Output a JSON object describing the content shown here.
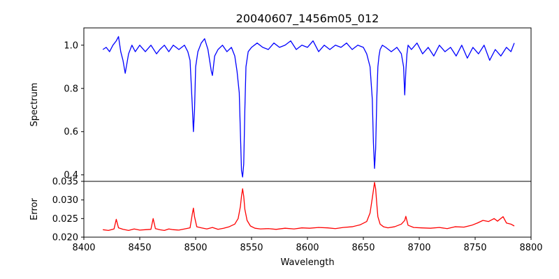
{
  "chart_data": [
    {
      "type": "line",
      "title": "20040607_1456m05_012",
      "ylabel": "Spectrum",
      "xlim": [
        8400,
        8800
      ],
      "ylim": [
        0.37,
        1.08
      ],
      "yticks": [
        0.4,
        0.6,
        0.8,
        1.0
      ],
      "ytick_labels": [
        "0.4",
        "0.6",
        "0.8",
        "1.0"
      ],
      "grid": false,
      "series": [
        {
          "color": "#0000ff",
          "x": [
            8417,
            8420,
            8423,
            8426,
            8429,
            8431,
            8433,
            8435,
            8437,
            8440,
            8443,
            8446,
            8450,
            8455,
            8460,
            8465,
            8468,
            8472,
            8476,
            8480,
            8485,
            8490,
            8493,
            8495,
            8497,
            8498,
            8499,
            8500,
            8502,
            8505,
            8508,
            8511,
            8514,
            8515,
            8517,
            8520,
            8524,
            8528,
            8532,
            8535,
            8537,
            8539,
            8540,
            8541,
            8542,
            8543,
            8544,
            8545,
            8547,
            8550,
            8555,
            8560,
            8565,
            8570,
            8575,
            8580,
            8585,
            8590,
            8595,
            8600,
            8605,
            8610,
            8615,
            8620,
            8625,
            8630,
            8635,
            8640,
            8645,
            8650,
            8653,
            8656,
            8658,
            8659,
            8660,
            8661,
            8662,
            8663,
            8664,
            8665,
            8667,
            8670,
            8675,
            8680,
            8684,
            8686,
            8687,
            8688,
            8689,
            8690,
            8693,
            8698,
            8703,
            8708,
            8713,
            8718,
            8723,
            8728,
            8733,
            8738,
            8743,
            8748,
            8753,
            8758,
            8763,
            8768,
            8773,
            8778,
            8782,
            8785
          ],
          "values": [
            0.98,
            0.99,
            0.97,
            1.0,
            1.02,
            1.04,
            0.97,
            0.93,
            0.87,
            0.96,
            1.0,
            0.97,
            1.0,
            0.97,
            1.0,
            0.96,
            0.98,
            1.0,
            0.97,
            1.0,
            0.98,
            1.0,
            0.97,
            0.93,
            0.72,
            0.6,
            0.7,
            0.9,
            0.97,
            1.01,
            1.03,
            0.98,
            0.88,
            0.86,
            0.95,
            0.98,
            1.0,
            0.97,
            0.99,
            0.95,
            0.88,
            0.78,
            0.6,
            0.42,
            0.39,
            0.45,
            0.7,
            0.9,
            0.97,
            0.99,
            1.01,
            0.99,
            0.98,
            1.01,
            0.99,
            1.0,
            1.02,
            0.98,
            1.0,
            0.99,
            1.02,
            0.97,
            1.0,
            0.98,
            1.0,
            0.99,
            1.01,
            0.98,
            1.0,
            0.99,
            0.96,
            0.9,
            0.75,
            0.55,
            0.43,
            0.52,
            0.75,
            0.9,
            0.95,
            0.98,
            1.0,
            0.99,
            0.97,
            0.99,
            0.96,
            0.9,
            0.77,
            0.88,
            0.96,
            1.0,
            0.98,
            1.01,
            0.96,
            0.99,
            0.95,
            1.0,
            0.97,
            0.99,
            0.95,
            1.0,
            0.94,
            0.99,
            0.96,
            1.0,
            0.93,
            0.98,
            0.95,
            0.99,
            0.97,
            1.01
          ]
        }
      ]
    },
    {
      "type": "line",
      "title": "",
      "xlabel": "Wavelength",
      "ylabel": "Error",
      "xlim": [
        8400,
        8800
      ],
      "ylim": [
        0.02,
        0.035
      ],
      "xticks": [
        8400,
        8450,
        8500,
        8550,
        8600,
        8650,
        8700,
        8750,
        8800
      ],
      "xtick_labels": [
        "8400",
        "8450",
        "8500",
        "8550",
        "8600",
        "8650",
        "8700",
        "8750",
        "8800"
      ],
      "yticks": [
        0.02,
        0.025,
        0.03,
        0.035
      ],
      "ytick_labels": [
        "0.020",
        "0.025",
        "0.030",
        "0.035"
      ],
      "grid": false,
      "series": [
        {
          "color": "#ff0000",
          "x": [
            8417,
            8422,
            8427,
            8429,
            8431,
            8435,
            8440,
            8445,
            8450,
            8455,
            8460,
            8462,
            8464,
            8468,
            8472,
            8476,
            8480,
            8485,
            8490,
            8495,
            8497,
            8498,
            8499,
            8501,
            8505,
            8510,
            8515,
            8520,
            8525,
            8530,
            8535,
            8538,
            8540,
            8541,
            8542,
            8543,
            8544,
            8546,
            8549,
            8553,
            8558,
            8565,
            8572,
            8580,
            8588,
            8595,
            8602,
            8610,
            8618,
            8625,
            8632,
            8640,
            8647,
            8653,
            8656,
            8658,
            8660,
            8661,
            8662,
            8663,
            8665,
            8668,
            8672,
            8678,
            8684,
            8687,
            8688,
            8690,
            8695,
            8702,
            8710,
            8718,
            8725,
            8732,
            8740,
            8747,
            8752,
            8757,
            8762,
            8767,
            8770,
            8775,
            8778,
            8782,
            8785
          ],
          "values": [
            0.022,
            0.0218,
            0.0222,
            0.0248,
            0.0225,
            0.0221,
            0.0218,
            0.0222,
            0.0219,
            0.022,
            0.0221,
            0.025,
            0.0223,
            0.022,
            0.0218,
            0.0222,
            0.022,
            0.0219,
            0.0222,
            0.0225,
            0.0262,
            0.0278,
            0.0255,
            0.0228,
            0.0225,
            0.0222,
            0.0226,
            0.0221,
            0.0224,
            0.0228,
            0.0235,
            0.025,
            0.0282,
            0.031,
            0.033,
            0.031,
            0.0275,
            0.0245,
            0.023,
            0.0224,
            0.0222,
            0.0223,
            0.0221,
            0.0224,
            0.0222,
            0.0225,
            0.0224,
            0.0226,
            0.0225,
            0.0223,
            0.0226,
            0.0228,
            0.0233,
            0.0242,
            0.0265,
            0.0305,
            0.0347,
            0.033,
            0.029,
            0.0255,
            0.0235,
            0.0228,
            0.0225,
            0.0228,
            0.0235,
            0.0245,
            0.0256,
            0.0232,
            0.0226,
            0.0225,
            0.0224,
            0.0226,
            0.0223,
            0.0228,
            0.0227,
            0.0232,
            0.0238,
            0.0245,
            0.0242,
            0.025,
            0.0243,
            0.0255,
            0.0238,
            0.0235,
            0.023
          ]
        }
      ]
    }
  ]
}
